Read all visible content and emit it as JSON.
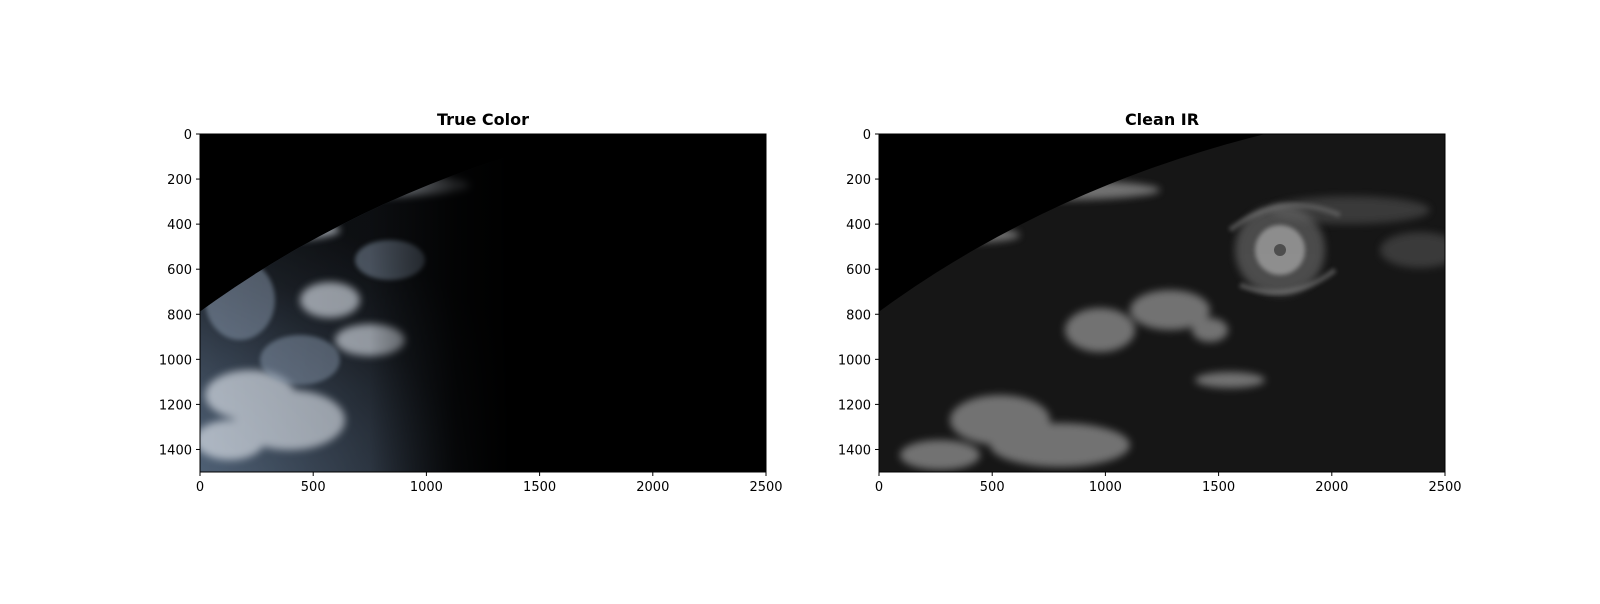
{
  "figure": {
    "panels": [
      {
        "id": "true-color",
        "title": "True Color",
        "image_style": "rgb-earth-disk",
        "xlim": [
          0,
          2500
        ],
        "ylim": [
          1500,
          0
        ],
        "x_ticks": [
          "0",
          "500",
          "1000",
          "1500",
          "2000",
          "2500"
        ],
        "y_ticks": [
          "0",
          "200",
          "400",
          "600",
          "800",
          "1000",
          "1200",
          "1400"
        ]
      },
      {
        "id": "clean-ir",
        "title": "Clean IR",
        "image_style": "grayscale-ir",
        "xlim": [
          0,
          2500
        ],
        "ylim": [
          1500,
          0
        ],
        "x_ticks": [
          "0",
          "500",
          "1000",
          "1500",
          "2000",
          "2500"
        ],
        "y_ticks": [
          "0",
          "200",
          "400",
          "600",
          "800",
          "1000",
          "1200",
          "1400"
        ]
      }
    ]
  }
}
